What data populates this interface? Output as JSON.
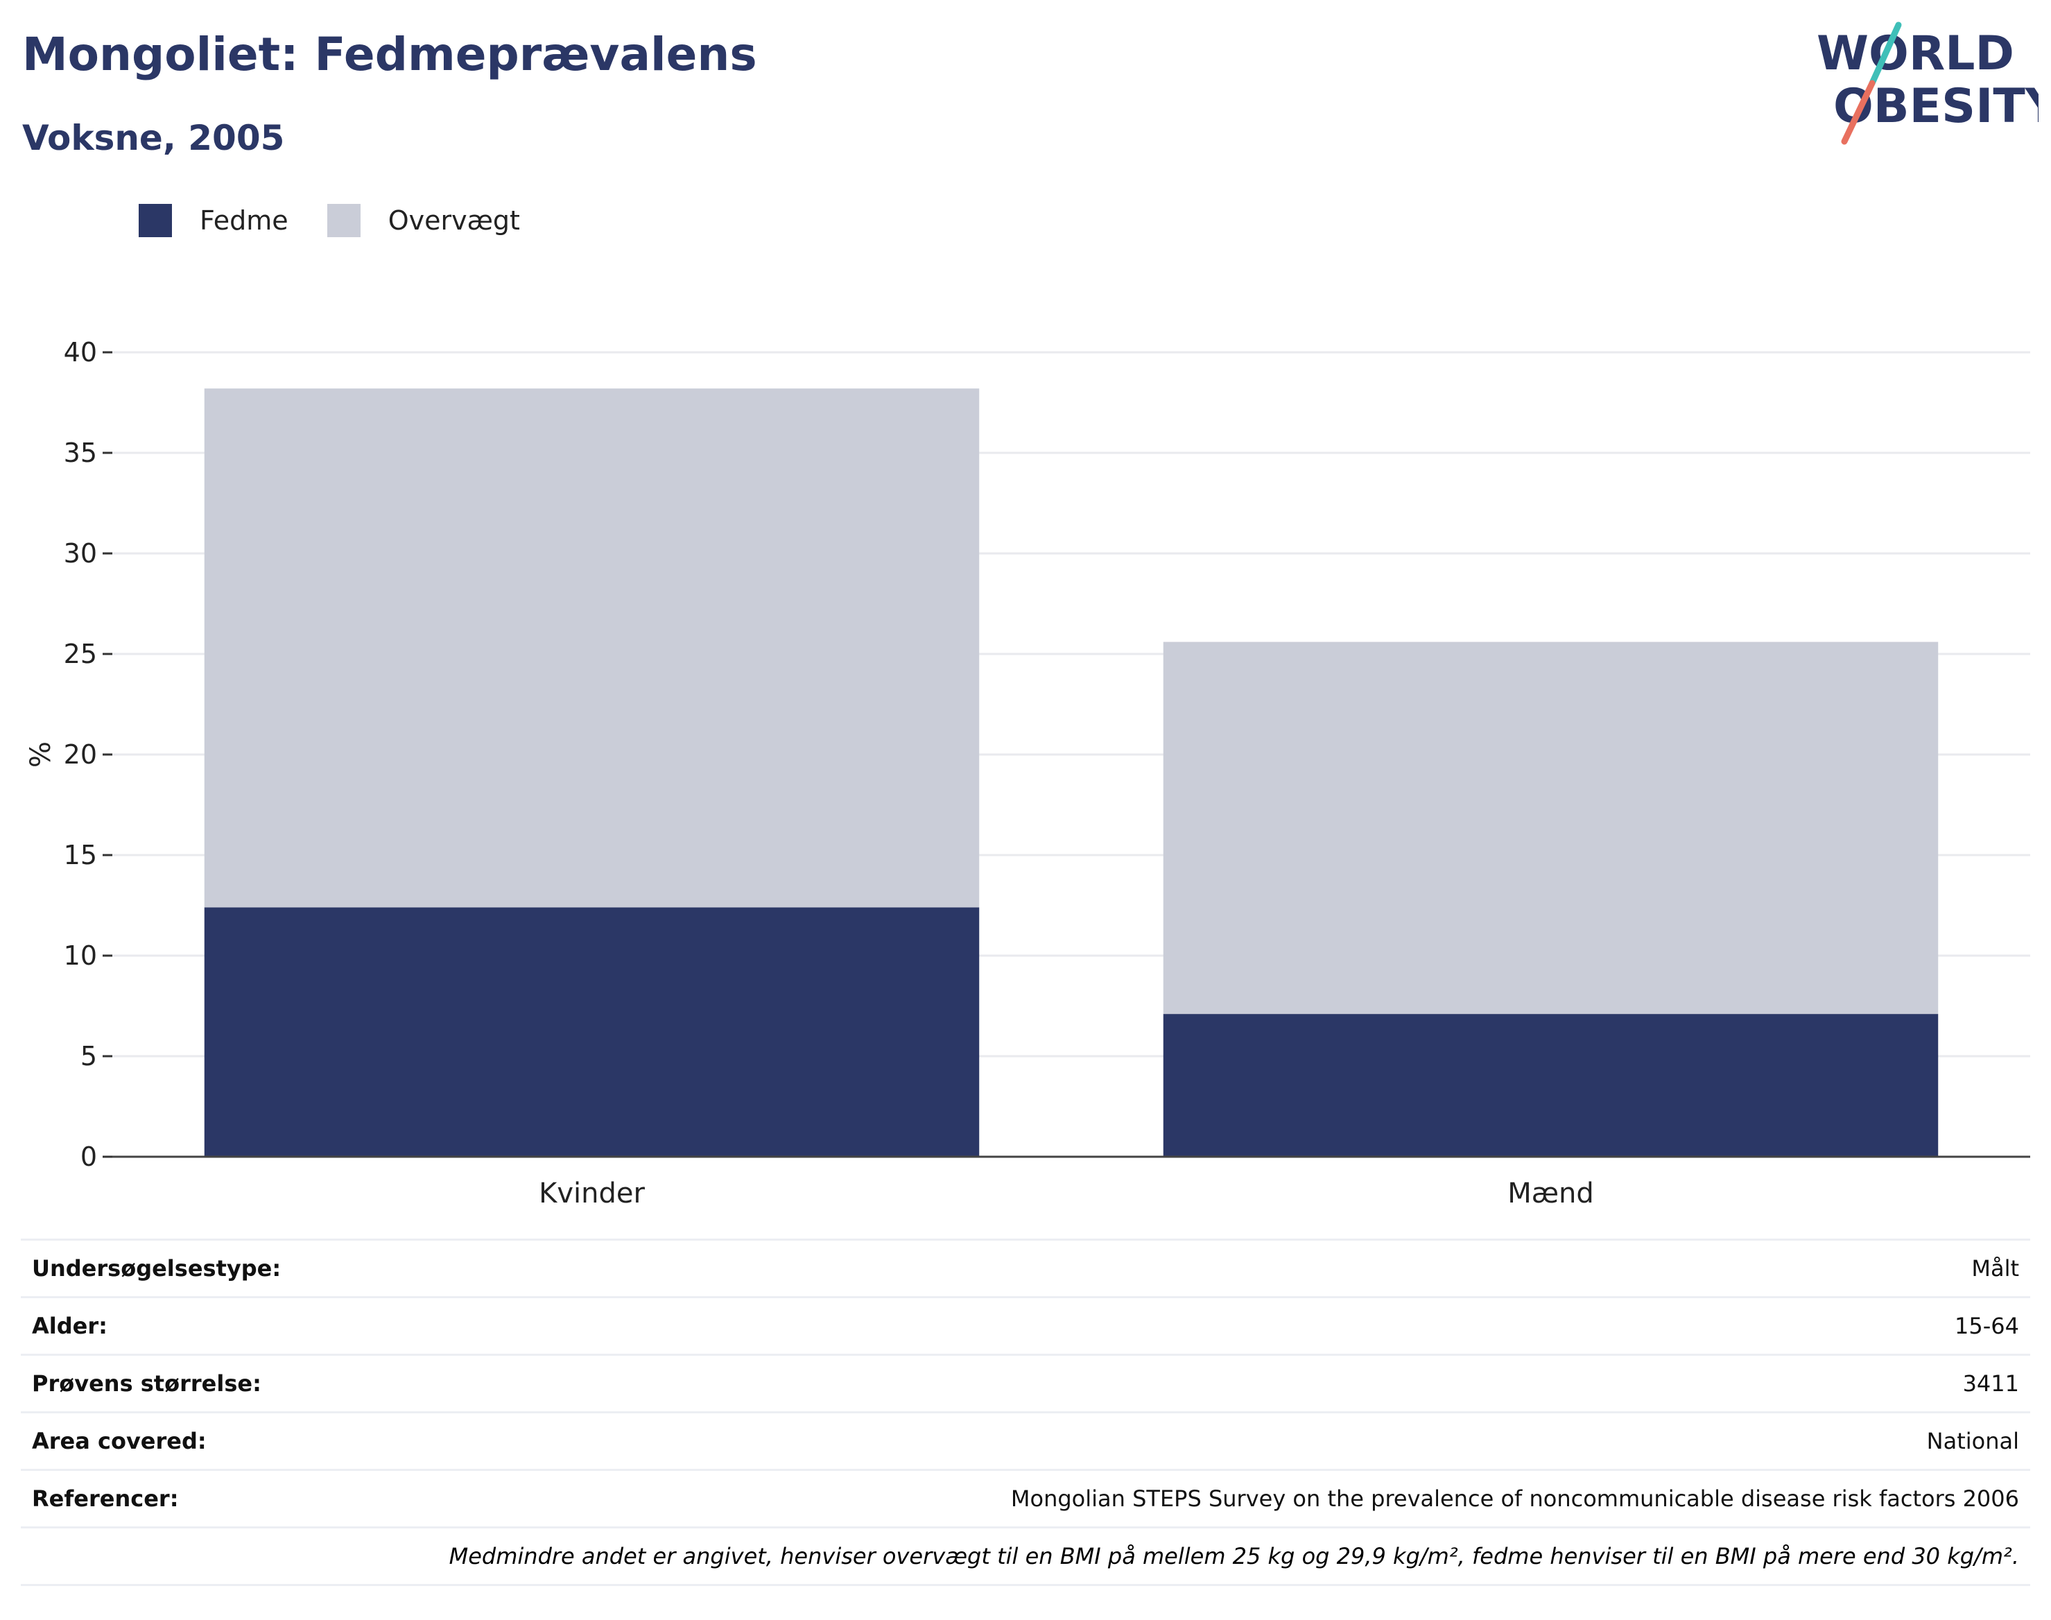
{
  "header": {
    "title": "Mongoliet: Fedmeprævalens",
    "subtitle": "Voksne, 2005"
  },
  "logo": {
    "line1": "WORLD",
    "line2": "OBESITY"
  },
  "colors": {
    "fedme": "#2b3766",
    "overvaegt": "#cacdd8",
    "title": "#2b3766",
    "grid": "#e9eaee",
    "logo_teal": "#3fbfb8",
    "logo_coral": "#e8705f"
  },
  "legend": {
    "items": [
      {
        "label": "Fedme",
        "color": "#2b3766"
      },
      {
        "label": "Overvægt",
        "color": "#cacdd8"
      }
    ]
  },
  "chart_data": {
    "type": "bar",
    "stacked": true,
    "categories": [
      "Kvinder",
      "Mænd"
    ],
    "series": [
      {
        "name": "Fedme",
        "values": [
          12.4,
          7.1
        ]
      },
      {
        "name": "Overvægt",
        "values": [
          25.8,
          18.5
        ]
      }
    ],
    "ylabel": "%",
    "ylim": [
      0,
      40
    ],
    "yticks": [
      0,
      5,
      10,
      15,
      20,
      25,
      30,
      35,
      40
    ],
    "grid": true,
    "legend_position": "top-left"
  },
  "info": {
    "rows": [
      {
        "label": "Undersøgelsestype:",
        "value": "Målt"
      },
      {
        "label": "Alder:",
        "value": "15-64"
      },
      {
        "label": "Prøvens størrelse:",
        "value": "3411"
      },
      {
        "label": "Area covered:",
        "value": "National"
      },
      {
        "label": "Referencer:",
        "value": "Mongolian STEPS Survey on the prevalence of noncommunicable disease risk factors 2006"
      }
    ],
    "footnote": "Medmindre andet er angivet, henviser overvægt til en BMI på mellem 25 kg og 29,9 kg/m², fedme henviser til en BMI på mere end 30 kg/m²."
  }
}
